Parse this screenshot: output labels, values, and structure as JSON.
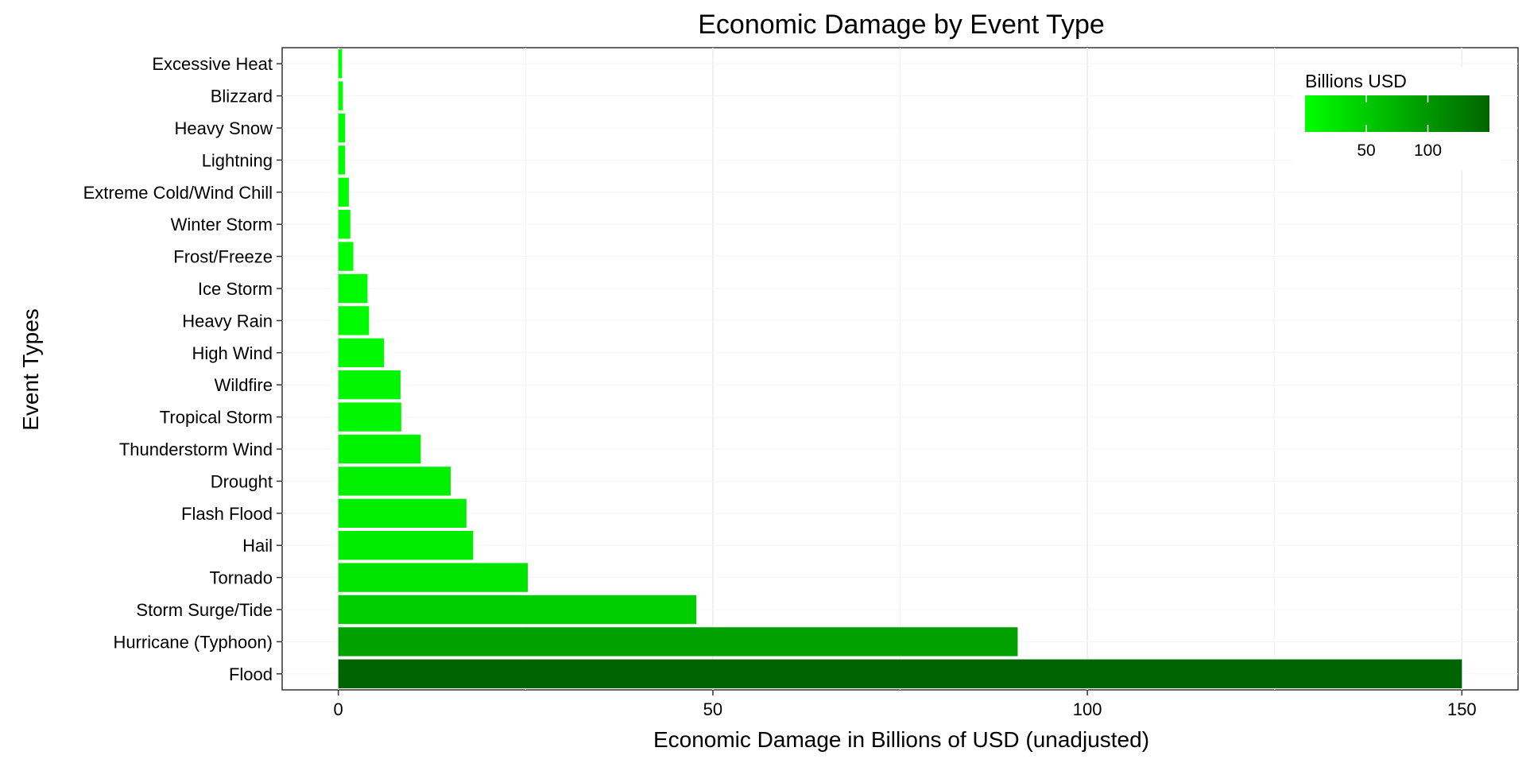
{
  "chart_data": {
    "type": "bar",
    "orientation": "horizontal",
    "title": "Economic Damage by Event Type",
    "xlabel": "Economic Damage in Billions of USD (unadjusted)",
    "ylabel": "Event Types",
    "xlim": [
      -7.5,
      157.5
    ],
    "xticks": [
      0,
      50,
      100,
      150
    ],
    "grid": true,
    "legend": {
      "title": "Billions USD",
      "placement": "top-right",
      "range": [
        0.3,
        150
      ],
      "ticks": [
        50,
        100
      ],
      "color_low": "#00ff00",
      "color_high": "#006400"
    },
    "categories": [
      "Excessive Heat",
      "Blizzard",
      "Heavy Snow",
      "Lightning",
      "Extreme Cold/Wind Chill",
      "Winter Storm",
      "Frost/Freeze",
      "Ice Storm",
      "Heavy Rain",
      "High Wind",
      "Wildfire",
      "Tropical Storm",
      "Thunderstorm Wind",
      "Drought",
      "Flash Flood",
      "Hail",
      "Tornado",
      "Storm Surge/Tide",
      "Hurricane (Typhoon)",
      "Flood"
    ],
    "values": [
      0.5,
      0.6,
      0.9,
      0.9,
      1.4,
      1.6,
      2.0,
      3.9,
      4.1,
      6.1,
      8.3,
      8.4,
      11.0,
      15.0,
      17.1,
      18.0,
      25.3,
      47.8,
      90.7,
      150.0
    ]
  }
}
